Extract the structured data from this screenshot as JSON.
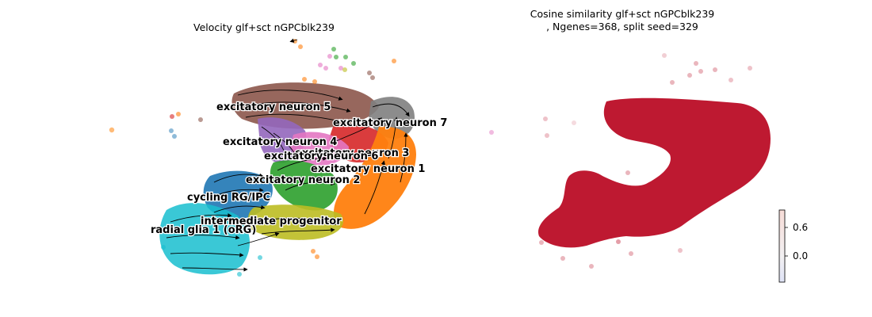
{
  "panels": {
    "left_title": "Velocity glf+sct nGPCblk239",
    "right_title": "Cosine similarity glf+sct nGPCblk239\n, Ngenes=368, split seed=329"
  },
  "chart_data": [
    {
      "type": "scatter",
      "title": "Velocity glf+sct nGPCblk239",
      "subtype": "UMAP embedding with velocity streamlines",
      "axes_visible": false,
      "legend": "on data",
      "clusters": [
        {
          "name": "excitatory neuron 5",
          "color": "#8c564b"
        },
        {
          "name": "excitatory neuron 7",
          "color": "#7f7f7f"
        },
        {
          "name": "excitatory neuron 4",
          "color": "#9467bd"
        },
        {
          "name": "excitatory neuron 3",
          "color": "#d62728"
        },
        {
          "name": "excitatory neuron 6",
          "color": "#e377c2"
        },
        {
          "name": "excitatory neuron 1",
          "color": "#ff7f0e"
        },
        {
          "name": "excitatory neuron 2",
          "color": "#2ca02c"
        },
        {
          "name": "cycling RG/IPC",
          "color": "#1f77b4"
        },
        {
          "name": "intermediate progenitor",
          "color": "#bcbd22"
        },
        {
          "name": "radial glia 1 (oRG)",
          "color": "#17becf"
        }
      ]
    },
    {
      "type": "scatter",
      "title": "Cosine similarity glf+sct nGPCblk239\n, Ngenes=368, split seed=329",
      "subtype": "UMAP embedding colored by cosine similarity",
      "axes_visible": false,
      "colormap": "coolwarm",
      "dominant_color": "#bb0d26",
      "colorbar": {
        "ticks": [
          0.6,
          0.0
        ],
        "tick_labels": [
          "0.6",
          "0.0"
        ],
        "range": [
          -0.5,
          1.0
        ]
      }
    }
  ]
}
